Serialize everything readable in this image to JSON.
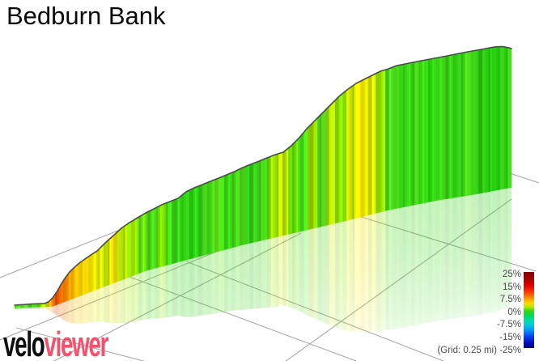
{
  "header": {
    "title": "Bedburn Bank"
  },
  "branding": {
    "velo": "velo",
    "viewer": "viewer",
    "viewer_color": "#f6506c",
    "velo_color": "#0d0d0d"
  },
  "palette": {
    "background": "#ffffff",
    "grid_line": "#a9a9a9",
    "profile_outline": "#4a4a4a",
    "label_text": "#4a4a4a",
    "title_text": "#0a0a0a"
  },
  "chart_data": {
    "type": "area",
    "title": "Bedburn Bank",
    "description": "VeloViewer style 3D elevation profile of a climb; wall height = elevation, stripe colour = gradient (%), pale mirror below = ground shadow",
    "grid_caption": "(Grid: 0.25 mi)",
    "grid_spacing_mi": 0.25,
    "legend": {
      "position": "bottom-right",
      "ticks": [
        "25%",
        "15%",
        "7.5%",
        "0%",
        "-7.5%",
        "-15%",
        "-25%"
      ],
      "tick_values_pct": [
        25,
        15,
        7.5,
        0,
        -7.5,
        -15,
        -25
      ],
      "gradient_stops": [
        {
          "at": 0.0,
          "color": "#7d0000"
        },
        {
          "at": 0.1,
          "color": "#b00000"
        },
        {
          "at": 0.18,
          "color": "#e60000"
        },
        {
          "at": 0.27,
          "color": "#ff4000"
        },
        {
          "at": 0.34,
          "color": "#ff9000"
        },
        {
          "at": 0.41,
          "color": "#ffd800"
        },
        {
          "at": 0.46,
          "color": "#b8e800"
        },
        {
          "at": 0.51,
          "color": "#38d810"
        },
        {
          "at": 0.57,
          "color": "#00dc50"
        },
        {
          "at": 0.64,
          "color": "#00dcb0"
        },
        {
          "at": 0.7,
          "color": "#00c8e0"
        },
        {
          "at": 0.77,
          "color": "#0090ff"
        },
        {
          "at": 0.85,
          "color": "#0040f0"
        },
        {
          "at": 0.93,
          "color": "#0010c0"
        },
        {
          "at": 1.0,
          "color": "#000085"
        }
      ]
    },
    "profile_points": [
      [
        0.0,
        0.017
      ],
      [
        0.0358,
        0.02
      ],
      [
        0.0603,
        0.02
      ],
      [
        0.0684,
        0.03
      ],
      [
        0.0765,
        0.056
      ],
      [
        0.0847,
        0.085
      ],
      [
        0.0928,
        0.125
      ],
      [
        0.101,
        0.159
      ],
      [
        0.1107,
        0.192
      ],
      [
        0.1205,
        0.212
      ],
      [
        0.1303,
        0.228
      ],
      [
        0.1417,
        0.241
      ],
      [
        0.1531,
        0.254
      ],
      [
        0.1661,
        0.265
      ],
      [
        0.1824,
        0.3
      ],
      [
        0.1987,
        0.329
      ],
      [
        0.215,
        0.359
      ],
      [
        0.2313,
        0.377
      ],
      [
        0.2476,
        0.389
      ],
      [
        0.2638,
        0.401
      ],
      [
        0.2801,
        0.414
      ],
      [
        0.2964,
        0.428
      ],
      [
        0.3127,
        0.435
      ],
      [
        0.329,
        0.442
      ],
      [
        0.3453,
        0.473
      ],
      [
        0.3616,
        0.486
      ],
      [
        0.3779,
        0.493
      ],
      [
        0.3941,
        0.501
      ],
      [
        0.4104,
        0.508
      ],
      [
        0.4267,
        0.516
      ],
      [
        0.443,
        0.524
      ],
      [
        0.4593,
        0.537
      ],
      [
        0.4756,
        0.546
      ],
      [
        0.4919,
        0.555
      ],
      [
        0.5081,
        0.565
      ],
      [
        0.5244,
        0.574
      ],
      [
        0.5407,
        0.578
      ],
      [
        0.557,
        0.61
      ],
      [
        0.5733,
        0.654
      ],
      [
        0.5896,
        0.708
      ],
      [
        0.6059,
        0.751
      ],
      [
        0.6221,
        0.795
      ],
      [
        0.6384,
        0.838
      ],
      [
        0.6547,
        0.881
      ],
      [
        0.671,
        0.912
      ],
      [
        0.6873,
        0.938
      ],
      [
        0.7036,
        0.952
      ],
      [
        0.7199,
        0.966
      ],
      [
        0.7362,
        0.98
      ],
      [
        0.7524,
        0.983
      ],
      [
        0.7687,
        0.994
      ],
      [
        0.785,
        0.994
      ],
      [
        0.8013,
        0.994
      ],
      [
        0.8176,
        0.994
      ],
      [
        0.842,
        0.992
      ],
      [
        0.8664,
        0.994
      ],
      [
        0.8909,
        0.997
      ],
      [
        0.9153,
        1.0
      ],
      [
        0.9397,
        1.0
      ],
      [
        0.9642,
        1.0
      ],
      [
        0.9804,
        0.994
      ],
      [
        0.9935,
        0.977
      ],
      [
        1.0,
        0.966
      ]
    ],
    "gradient_stripes": [
      {
        "to": 0.052,
        "color": "#49c91a",
        "approx_grade_pct": 3
      },
      {
        "to": 0.065,
        "color": "#9ed400",
        "approx_grade_pct": 8
      },
      {
        "to": 0.073,
        "color": "#e0a800",
        "approx_grade_pct": 12
      },
      {
        "to": 0.081,
        "color": "#dd6b00",
        "approx_grade_pct": 15
      },
      {
        "to": 0.09,
        "color": "#d44a00",
        "approx_grade_pct": 17
      },
      {
        "to": 0.099,
        "color": "#e06000",
        "approx_grade_pct": 15
      },
      {
        "to": 0.111,
        "color": "#e87a00",
        "approx_grade_pct": 14
      },
      {
        "to": 0.122,
        "color": "#eda000",
        "approx_grade_pct": 13
      },
      {
        "to": 0.134,
        "color": "#edb800",
        "approx_grade_pct": 12
      },
      {
        "to": 0.147,
        "color": "#e6c800",
        "approx_grade_pct": 11
      },
      {
        "to": 0.16,
        "color": "#ddd000",
        "approx_grade_pct": 10
      },
      {
        "to": 0.176,
        "color": "#cdd400",
        "approx_grade_pct": 9.5
      },
      {
        "to": 0.192,
        "color": "#b7d400",
        "approx_grade_pct": 9
      },
      {
        "to": 0.208,
        "color": "#dcd000",
        "approx_grade_pct": 10
      },
      {
        "to": 0.228,
        "color": "#a5d300",
        "approx_grade_pct": 8.5
      },
      {
        "to": 0.248,
        "color": "#8bd000",
        "approx_grade_pct": 8
      },
      {
        "to": 0.267,
        "color": "#60ca10",
        "approx_grade_pct": 7
      },
      {
        "to": 0.29,
        "color": "#46c816",
        "approx_grade_pct": 6
      },
      {
        "to": 0.306,
        "color": "#74ce00",
        "approx_grade_pct": 7.5
      },
      {
        "to": 0.326,
        "color": "#38c614",
        "approx_grade_pct": 5.5
      },
      {
        "to": 0.349,
        "color": "#2ec312",
        "approx_grade_pct": 5
      },
      {
        "to": 0.375,
        "color": "#27c00e",
        "approx_grade_pct": 4.5
      },
      {
        "to": 0.397,
        "color": "#3ac514",
        "approx_grade_pct": 5.5
      },
      {
        "to": 0.42,
        "color": "#52ca18",
        "approx_grade_pct": 6.5
      },
      {
        "to": 0.443,
        "color": "#36c513",
        "approx_grade_pct": 5.5
      },
      {
        "to": 0.466,
        "color": "#44c816",
        "approx_grade_pct": 6
      },
      {
        "to": 0.489,
        "color": "#30c312",
        "approx_grade_pct": 5
      },
      {
        "to": 0.511,
        "color": "#3fc715",
        "approx_grade_pct": 6
      },
      {
        "to": 0.531,
        "color": "#8ed000",
        "approx_grade_pct": 8
      },
      {
        "to": 0.55,
        "color": "#b2d400",
        "approx_grade_pct": 9
      },
      {
        "to": 0.57,
        "color": "#62cb00",
        "approx_grade_pct": 7
      },
      {
        "to": 0.59,
        "color": "#42c816",
        "approx_grade_pct": 6
      },
      {
        "to": 0.609,
        "color": "#90d000",
        "approx_grade_pct": 8
      },
      {
        "to": 0.629,
        "color": "#50ca18",
        "approx_grade_pct": 6.5
      },
      {
        "to": 0.648,
        "color": "#a6d300",
        "approx_grade_pct": 8.5
      },
      {
        "to": 0.668,
        "color": "#7ace00",
        "approx_grade_pct": 7.5
      },
      {
        "to": 0.687,
        "color": "#bcd400",
        "approx_grade_pct": 9
      },
      {
        "to": 0.707,
        "color": "#dcd200",
        "approx_grade_pct": 10
      },
      {
        "to": 0.726,
        "color": "#c8d400",
        "approx_grade_pct": 9.5
      },
      {
        "to": 0.746,
        "color": "#86ce00",
        "approx_grade_pct": 8
      },
      {
        "to": 0.772,
        "color": "#44c816",
        "approx_grade_pct": 6
      },
      {
        "to": 0.798,
        "color": "#32c413",
        "approx_grade_pct": 5
      },
      {
        "to": 0.824,
        "color": "#3cc615",
        "approx_grade_pct": 5.5
      },
      {
        "to": 0.85,
        "color": "#2bc110",
        "approx_grade_pct": 4.5
      },
      {
        "to": 0.876,
        "color": "#38c514",
        "approx_grade_pct": 5.5
      },
      {
        "to": 0.902,
        "color": "#2fc312",
        "approx_grade_pct": 5
      },
      {
        "to": 0.928,
        "color": "#41c716",
        "approx_grade_pct": 6
      },
      {
        "to": 0.954,
        "color": "#2abf10",
        "approx_grade_pct": 4.5
      },
      {
        "to": 0.977,
        "color": "#23bb0e",
        "approx_grade_pct": 4
      },
      {
        "to": 1.0,
        "color": "#2fbd12",
        "approx_grade_pct": 5
      }
    ],
    "ground_grid_lines": [
      [
        0,
        343,
        168,
        276
      ],
      [
        0,
        420,
        272,
        309
      ],
      [
        40,
        460,
        372,
        288
      ],
      [
        338,
        457,
        632,
        246
      ],
      [
        20,
        405,
        185,
        448
      ],
      [
        160,
        342,
        440,
        446
      ],
      [
        230,
        323,
        548,
        446
      ],
      [
        395,
        252,
        662,
        335
      ],
      [
        624,
        212,
        666,
        226
      ]
    ]
  }
}
